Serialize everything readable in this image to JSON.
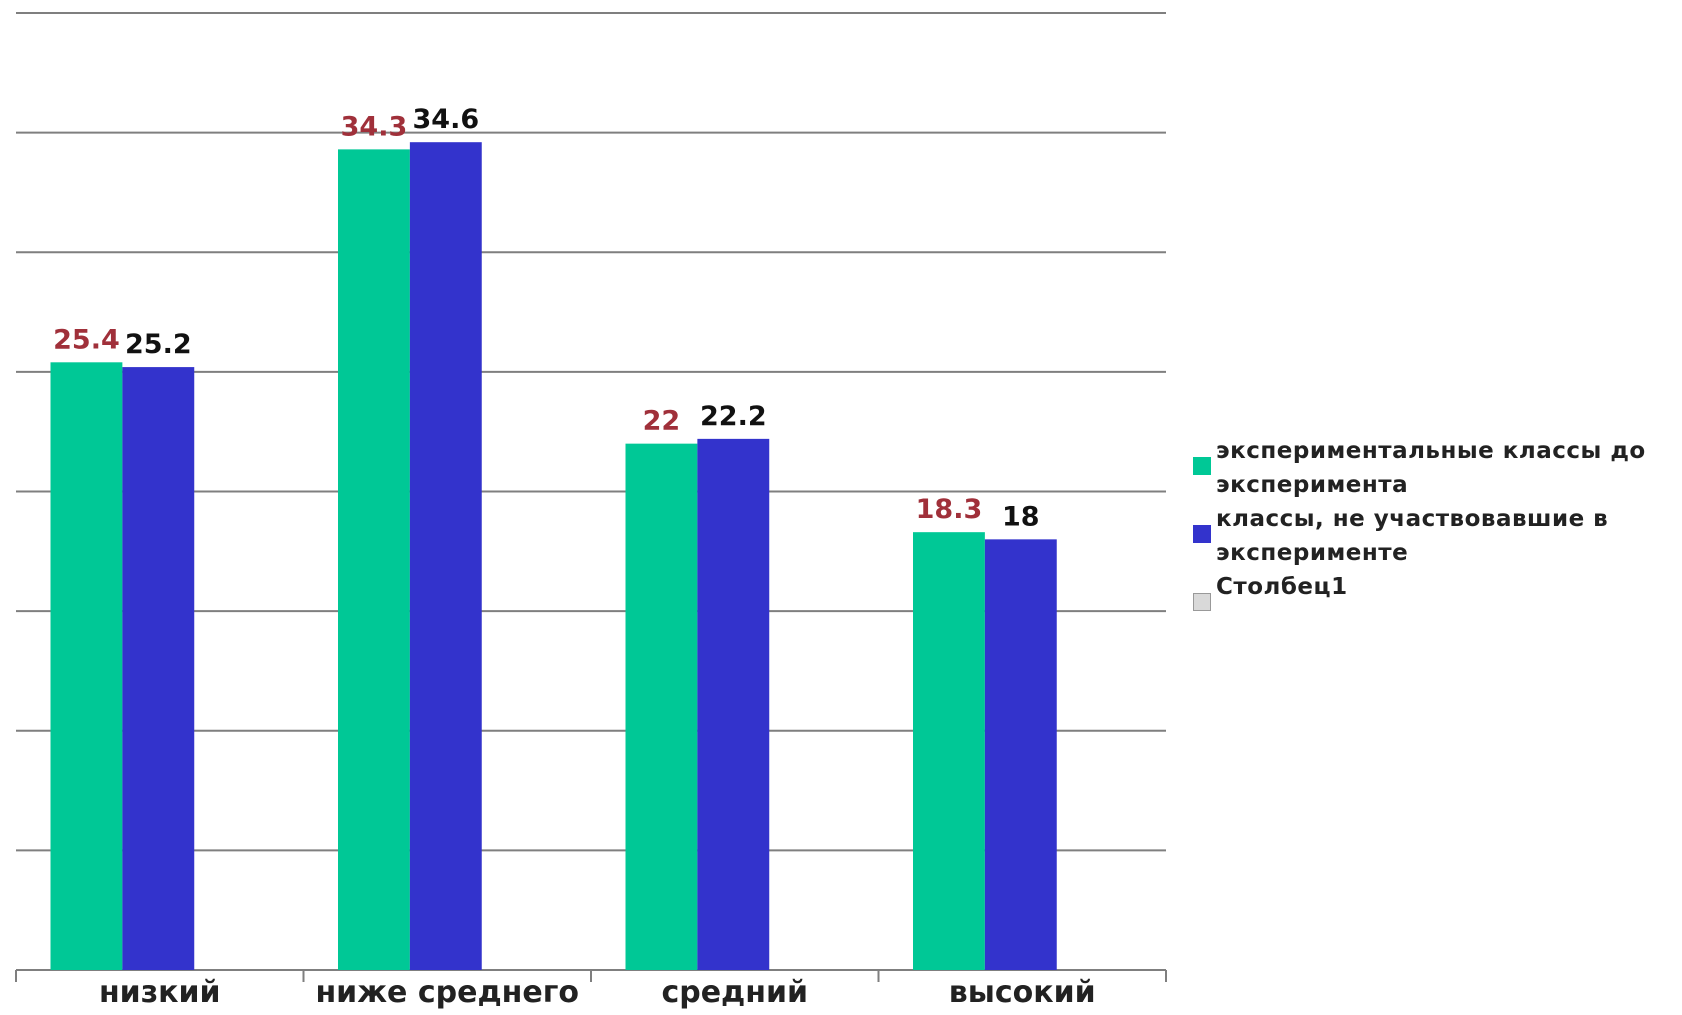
{
  "chart_data": {
    "type": "bar",
    "categories": [
      "низкий",
      "ниже среднего",
      "средний",
      "высокий"
    ],
    "series": [
      {
        "name": "экспериментальные классы до эксперимента",
        "color": "#00c896",
        "label_color": "#a0303a",
        "values": [
          25.4,
          34.3,
          22,
          18.3
        ]
      },
      {
        "name": "классы, не участвовавшие в эксперименте",
        "color": "#3333cc",
        "label_color": "#111111",
        "values": [
          25.2,
          34.6,
          22.2,
          18
        ]
      },
      {
        "name": "Столбец1",
        "color": "#d9d9d9",
        "values": [
          null,
          null,
          null,
          null
        ]
      }
    ],
    "ylim": [
      0,
      40
    ],
    "yticks": [
      0,
      5,
      10,
      15,
      20,
      25,
      30,
      35,
      40
    ],
    "grid": true
  }
}
